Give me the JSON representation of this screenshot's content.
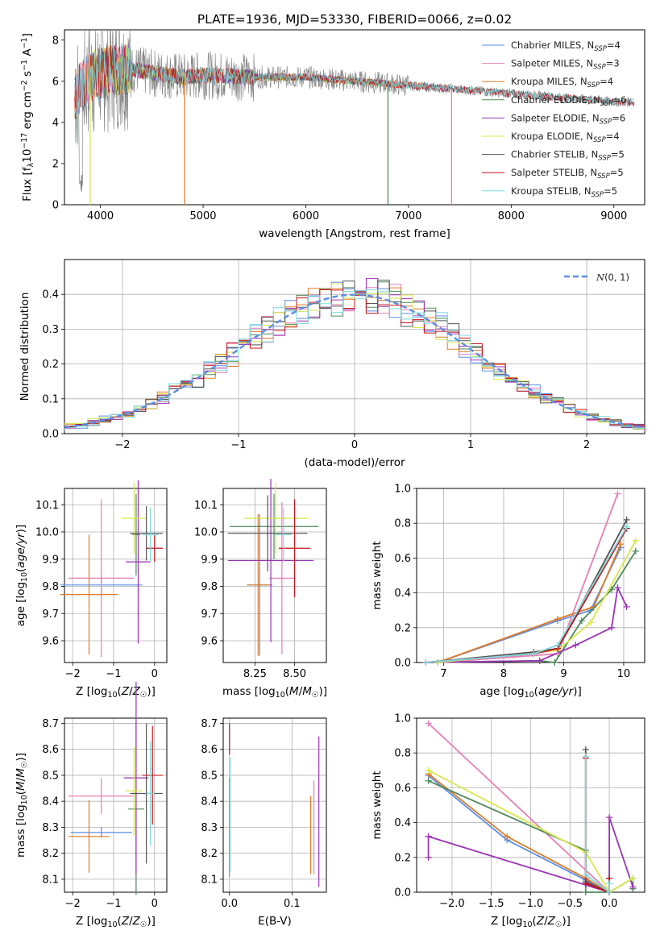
{
  "figure_title": "PLATE=1936, MJD=53330, FIBERID=0066, z=0.02",
  "colors": {
    "Chabrier MILES": "#5b8ee6",
    "Salpeter MILES": "#e77fb5",
    "Kroupa MILES": "#e07b28",
    "Chabrier ELODIE": "#4e8a5c",
    "Salpeter ELODIE": "#9b32b5",
    "Kroupa ELODIE": "#d6e84b",
    "Chabrier STELIB": "#555555",
    "Salpeter STELIB": "#c4141c",
    "Kroupa STELIB": "#7fd9dd",
    "data": "#7f7f7f",
    "normal": "#5b8ee6"
  },
  "chart_data": [
    {
      "id": "spectrum",
      "type": "line",
      "xlabel": "wavelength [Angstrom, rest frame]",
      "ylabel": "Flux [f_λ 10^-17 erg cm^-2 s^-1 A^-1]",
      "xlim": [
        3650,
        9300
      ],
      "ylim": [
        0,
        8.5
      ],
      "xticks": [
        4000,
        5000,
        6000,
        7000,
        8000,
        9000
      ],
      "yticks": [
        0,
        2,
        4,
        6,
        8
      ],
      "legend_position": "top-right",
      "legend": [
        "Chabrier MILES, N_SSP=4",
        "Salpeter MILES, N_SSP=3",
        "Kroupa MILES, N_SSP=4",
        "Chabrier ELODIE, N_SSP=6",
        "Salpeter ELODIE, N_SSP=6",
        "Kroupa ELODIE, N_SSP=4",
        "Chabrier STELIB, N_SSP=5",
        "Salpeter STELIB, N_SSP=5",
        "Kroupa STELIB, N_SSP=5"
      ],
      "continuum_x": [
        3750,
        3900,
        4100,
        4300,
        4500,
        4800,
        5000,
        5500,
        6000,
        6500,
        7000,
        7500,
        8000,
        8500,
        9000,
        9200
      ],
      "continuum_y": [
        5.3,
        6.2,
        6.5,
        6.6,
        6.4,
        6.2,
        6.3,
        6.2,
        6.2,
        6.0,
        5.8,
        5.6,
        5.4,
        5.2,
        5.0,
        5.0
      ],
      "dips": [
        {
          "series": "Kroupa MILES",
          "x": 4820
        },
        {
          "series": "Chabrier ELODIE",
          "x": 6800
        },
        {
          "series": "Salpeter MILES",
          "x": 7420
        },
        {
          "series": "Kroupa ELODIE",
          "x": 3900
        }
      ]
    },
    {
      "id": "residuals",
      "type": "histogram",
      "xlabel": "(data-model)/error",
      "ylabel": "Normed distribution",
      "xlim": [
        -2.5,
        2.5
      ],
      "ylim": [
        0,
        0.5
      ],
      "xticks": [
        -2,
        -1,
        0,
        1,
        2
      ],
      "yticks": [
        0.0,
        0.1,
        0.2,
        0.3,
        0.4
      ],
      "legend": [
        "N(0,1)"
      ],
      "legend_position": "top-right",
      "grid": true
    },
    {
      "id": "age-vs-Z",
      "type": "errorbar",
      "xlabel": "Z [log10(Z/Z☉)]",
      "ylabel": "age [log10(age/yr)]",
      "xlim": [
        -2.2,
        0.3
      ],
      "ylim": [
        9.52,
        10.16
      ],
      "xticks": [
        -2,
        -1,
        0
      ],
      "yticks": [
        9.6,
        9.7,
        9.8,
        9.9,
        10.0,
        10.1
      ],
      "grid": true,
      "points": [
        {
          "series": "Chabrier MILES",
          "x": -1.3,
          "xerr": 1.0,
          "y": 9.805,
          "yerr": 0.04
        },
        {
          "series": "Salpeter MILES",
          "x": -1.3,
          "xerr": 0.8,
          "y": 9.83,
          "yerr": 0.29
        },
        {
          "series": "Kroupa MILES",
          "x": -1.6,
          "xerr": 0.7,
          "y": 9.77,
          "yerr": 0.22
        },
        {
          "series": "Chabrier ELODIE",
          "x": -0.45,
          "xerr": 0.1,
          "y": 9.99,
          "yerr": 0.15
        },
        {
          "series": "Salpeter ELODIE",
          "x": -0.4,
          "xerr": 0.3,
          "y": 9.89,
          "yerr": 0.3
        },
        {
          "series": "Kroupa ELODIE",
          "x": -0.5,
          "xerr": 0.3,
          "y": 10.05,
          "yerr": 0.13
        },
        {
          "series": "Chabrier STELIB",
          "x": -0.2,
          "xerr": 0.4,
          "y": 9.995,
          "yerr": 0.1
        },
        {
          "series": "Salpeter STELIB",
          "x": 0.0,
          "xerr": 0.2,
          "y": 9.94,
          "yerr": 0.05
        },
        {
          "series": "Kroupa STELIB",
          "x": -0.1,
          "xerr": 0.2,
          "y": 9.99,
          "yerr": 0.1
        }
      ]
    },
    {
      "id": "age-vs-mass",
      "type": "errorbar",
      "xlabel": "mass [log10(M/M☉)]",
      "ylabel": "",
      "xlim": [
        8.05,
        8.7
      ],
      "ylim": [
        9.52,
        10.16
      ],
      "xticks": [
        8.25,
        8.5
      ],
      "yticks": [
        9.6,
        9.7,
        9.8,
        9.9,
        10.0,
        10.1
      ],
      "grid": true,
      "points": [
        {
          "series": "Chabrier MILES",
          "x": 8.28,
          "xerr": 0.08,
          "y": 9.805,
          "yerr": 0.26
        },
        {
          "series": "Salpeter MILES",
          "x": 8.42,
          "xerr": 0.08,
          "y": 9.83,
          "yerr": 0.28
        },
        {
          "series": "Kroupa MILES",
          "x": 8.27,
          "xerr": 0.07,
          "y": 9.805,
          "yerr": 0.26
        },
        {
          "series": "Chabrier ELODIE",
          "x": 8.37,
          "xerr": 0.28,
          "y": 10.02,
          "yerr": 0.12
        },
        {
          "series": "Salpeter ELODIE",
          "x": 8.35,
          "xerr": 0.27,
          "y": 9.895,
          "yerr": 0.3
        },
        {
          "series": "Kroupa ELODIE",
          "x": 8.38,
          "xerr": 0.2,
          "y": 10.05,
          "yerr": 0.13
        },
        {
          "series": "Chabrier STELIB",
          "x": 8.33,
          "xerr": 0.25,
          "y": 9.995,
          "yerr": 0.14
        },
        {
          "series": "Salpeter STELIB",
          "x": 8.5,
          "xerr": 0.1,
          "y": 9.94,
          "yerr": 0.18
        },
        {
          "series": "Kroupa STELIB",
          "x": 8.43,
          "xerr": 0.05,
          "y": 9.99,
          "yerr": 0.1
        }
      ]
    },
    {
      "id": "massweight-vs-age",
      "type": "line",
      "xlabel": "age [log10(age/yr)]",
      "ylabel": "mass weight",
      "xlim": [
        6.55,
        10.35
      ],
      "ylim": [
        0,
        1
      ],
      "xticks": [
        7,
        8,
        9,
        10
      ],
      "yticks": [
        0.0,
        0.2,
        0.4,
        0.6,
        0.8,
        1.0
      ],
      "grid": true,
      "series": [
        {
          "name": "Chabrier MILES",
          "x": [
            6.9,
            8.9,
            9.45,
            9.95
          ],
          "y": [
            0.0,
            0.24,
            0.3,
            0.66
          ]
        },
        {
          "name": "Salpeter MILES",
          "x": [
            6.9,
            8.9,
            9.9
          ],
          "y": [
            0.0,
            0.05,
            0.97
          ]
        },
        {
          "name": "Kroupa MILES",
          "x": [
            6.9,
            8.9,
            9.5,
            9.95
          ],
          "y": [
            0.0,
            0.25,
            0.32,
            0.68
          ]
        },
        {
          "name": "Chabrier ELODIE",
          "x": [
            6.7,
            8.6,
            8.85,
            9.3,
            9.8,
            10.2
          ],
          "y": [
            0.0,
            0.01,
            0.0,
            0.24,
            0.42,
            0.64
          ]
        },
        {
          "name": "Salpeter ELODIE",
          "x": [
            6.7,
            8.6,
            9.2,
            9.8,
            9.9,
            10.05
          ],
          "y": [
            0.0,
            0.01,
            0.1,
            0.2,
            0.43,
            0.32
          ]
        },
        {
          "name": "Kroupa ELODIE",
          "x": [
            6.9,
            8.9,
            9.45,
            10.2
          ],
          "y": [
            0.0,
            0.07,
            0.23,
            0.7
          ]
        },
        {
          "name": "Chabrier STELIB",
          "x": [
            6.7,
            8.5,
            8.9,
            10.05
          ],
          "y": [
            0.0,
            0.06,
            0.08,
            0.82
          ]
        },
        {
          "name": "Salpeter STELIB",
          "x": [
            6.7,
            8.5,
            8.9,
            10.05
          ],
          "y": [
            0.0,
            0.05,
            0.08,
            0.77
          ]
        },
        {
          "name": "Kroupa STELIB",
          "x": [
            6.7,
            8.5,
            8.9,
            10.05
          ],
          "y": [
            0.0,
            0.05,
            0.1,
            0.78
          ]
        }
      ]
    },
    {
      "id": "mass-vs-Z",
      "type": "errorbar",
      "xlabel": "Z [log10(Z/Z☉)]",
      "ylabel": "mass [log10(M/M☉)]",
      "xlim": [
        -2.2,
        0.3
      ],
      "ylim": [
        8.05,
        8.72
      ],
      "xticks": [
        -2,
        -1,
        0
      ],
      "yticks": [
        8.1,
        8.2,
        8.3,
        8.4,
        8.5,
        8.6,
        8.7
      ],
      "grid": true,
      "points": [
        {
          "series": "Chabrier MILES",
          "x": -1.3,
          "xerr": 0.75,
          "y": 8.28,
          "yerr": 0.02
        },
        {
          "series": "Salpeter MILES",
          "x": -1.3,
          "xerr": 0.8,
          "y": 8.42,
          "yerr": 0.07
        },
        {
          "series": "Kroupa MILES",
          "x": -1.6,
          "xerr": 0.5,
          "y": 8.265,
          "yerr": 0.14
        },
        {
          "series": "Chabrier ELODIE",
          "x": -0.45,
          "xerr": 0.2,
          "y": 8.37,
          "yerr": 0.33
        },
        {
          "series": "Salpeter ELODIE",
          "x": -0.45,
          "xerr": 0.3,
          "y": 8.49,
          "yerr": 0.37
        },
        {
          "series": "Kroupa ELODIE",
          "x": -0.5,
          "xerr": 0.2,
          "y": 8.44,
          "yerr": 0.17
        },
        {
          "series": "Chabrier STELIB",
          "x": -0.2,
          "xerr": 0.4,
          "y": 8.43,
          "yerr": 0.27
        },
        {
          "series": "Salpeter STELIB",
          "x": -0.05,
          "xerr": 0.25,
          "y": 8.5,
          "yerr": 0.19
        },
        {
          "series": "Kroupa STELIB",
          "x": -0.1,
          "xerr": 0.1,
          "y": 8.43,
          "yerr": 0.2
        }
      ]
    },
    {
      "id": "mass-vs-ebv",
      "type": "errorbar",
      "xlabel": "E(B-V)",
      "ylabel": "",
      "xlim": [
        -0.01,
        0.155
      ],
      "ylim": [
        8.05,
        8.72
      ],
      "xticks": [
        0.0,
        0.1
      ],
      "yticks": [
        8.1,
        8.2,
        8.3,
        8.4,
        8.5,
        8.6,
        8.7
      ],
      "grid": true,
      "points": [
        {
          "series": "Chabrier MILES",
          "x": 0.0,
          "y": 8.3,
          "yerr": 0.19
        },
        {
          "series": "Kroupa STELIB",
          "x": 0.001,
          "y": 8.35,
          "yerr": 0.22
        },
        {
          "series": "Salpeter STELIB",
          "x": 0.0,
          "y": 8.64,
          "yerr": 0.06
        },
        {
          "series": "Kroupa MILES",
          "x": 0.13,
          "y": 8.27,
          "yerr": 0.15
        },
        {
          "series": "Salpeter MILES",
          "x": 0.135,
          "y": 8.3,
          "yerr": 0.18
        },
        {
          "series": "Salpeter ELODIE",
          "x": 0.143,
          "y": 8.36,
          "yerr": 0.29
        }
      ]
    },
    {
      "id": "massweight-vs-Z",
      "type": "line",
      "xlabel": "Z [log10(Z/Z☉)]",
      "ylabel": "mass weight",
      "xlim": [
        -2.45,
        0.45
      ],
      "ylim": [
        0,
        1
      ],
      "xticks": [
        -2.0,
        -1.5,
        -1.0,
        -0.5,
        0.0
      ],
      "yticks": [
        0.0,
        0.2,
        0.4,
        0.6,
        0.8,
        1.0
      ],
      "grid": true,
      "series": [
        {
          "name": "Chabrier MILES",
          "x": [
            -2.3,
            -1.3,
            -0.3,
            0.0
          ],
          "y": [
            0.67,
            0.3,
            0.07,
            0.0
          ]
        },
        {
          "name": "Salpeter MILES",
          "x": [
            -2.3,
            0.0
          ],
          "y": [
            0.97,
            0.0
          ]
        },
        {
          "name": "Kroupa MILES",
          "x": [
            -2.3,
            -1.3,
            -0.3,
            0.0
          ],
          "y": [
            0.68,
            0.32,
            0.08,
            0.0
          ]
        },
        {
          "name": "Chabrier ELODIE",
          "x": [
            -2.3,
            -0.3,
            -0.3,
            0.0,
            0.3,
            0.3
          ],
          "y": [
            0.64,
            0.24,
            0.0,
            0.0,
            0.08,
            0.02
          ]
        },
        {
          "name": "Salpeter ELODIE",
          "x": [
            -2.3,
            -2.3,
            -2.3,
            0.0,
            0.0,
            0.3
          ],
          "y": [
            0.2,
            0.32,
            0.32,
            0.0,
            0.43,
            0.03
          ]
        },
        {
          "name": "Kroupa ELODIE",
          "x": [
            -2.3,
            -0.3,
            0.0,
            0.3
          ],
          "y": [
            0.7,
            0.23,
            0.0,
            0.08
          ]
        },
        {
          "name": "Chabrier STELIB",
          "x": [
            -0.3,
            -0.3,
            0.0,
            0.0
          ],
          "y": [
            0.82,
            0.06,
            0.0,
            0.08
          ]
        },
        {
          "name": "Salpeter STELIB",
          "x": [
            -0.3,
            -0.3,
            0.0,
            0.0
          ],
          "y": [
            0.77,
            0.05,
            0.0,
            0.08
          ]
        },
        {
          "name": "Kroupa STELIB",
          "x": [
            -0.3,
            -0.3,
            0.0,
            0.0
          ],
          "y": [
            0.78,
            0.1,
            0.0,
            0.05
          ]
        }
      ]
    }
  ]
}
